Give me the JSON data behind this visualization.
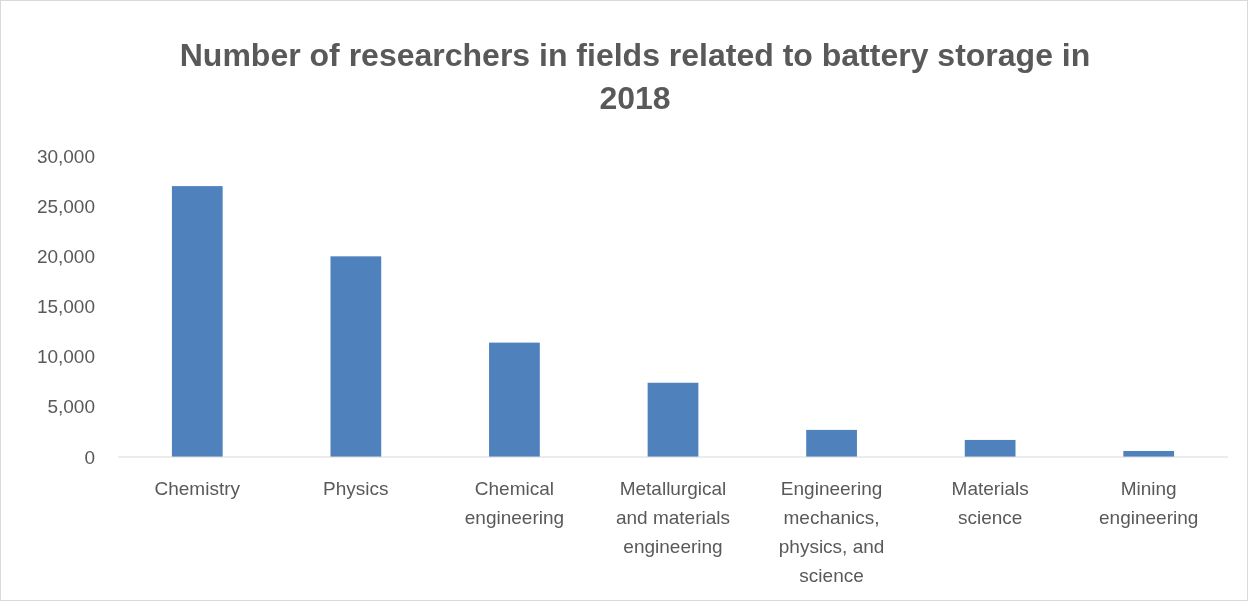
{
  "chart_data": {
    "type": "bar",
    "title": "Number of researchers in fields related to battery storage in 2018",
    "categories": [
      "Chemistry",
      "Physics",
      "Chemical engineering",
      "Metallurgical and materials engineering",
      "Engineering mechanics, physics, and science",
      "Materials science",
      "Mining engineering"
    ],
    "values": [
      27000,
      20000,
      11400,
      7400,
      2700,
      1700,
      600
    ],
    "color": "#4f81bd",
    "ylim": [
      0,
      30000
    ],
    "yticks": [
      {
        "value": 0,
        "label": "0"
      },
      {
        "value": 5000,
        "label": "5,000"
      },
      {
        "value": 10000,
        "label": "10,000"
      },
      {
        "value": 15000,
        "label": "15,000"
      },
      {
        "value": 20000,
        "label": "20,000"
      },
      {
        "value": 25000,
        "label": "25,000"
      },
      {
        "value": 30000,
        "label": "30,000"
      }
    ],
    "grid": false
  }
}
